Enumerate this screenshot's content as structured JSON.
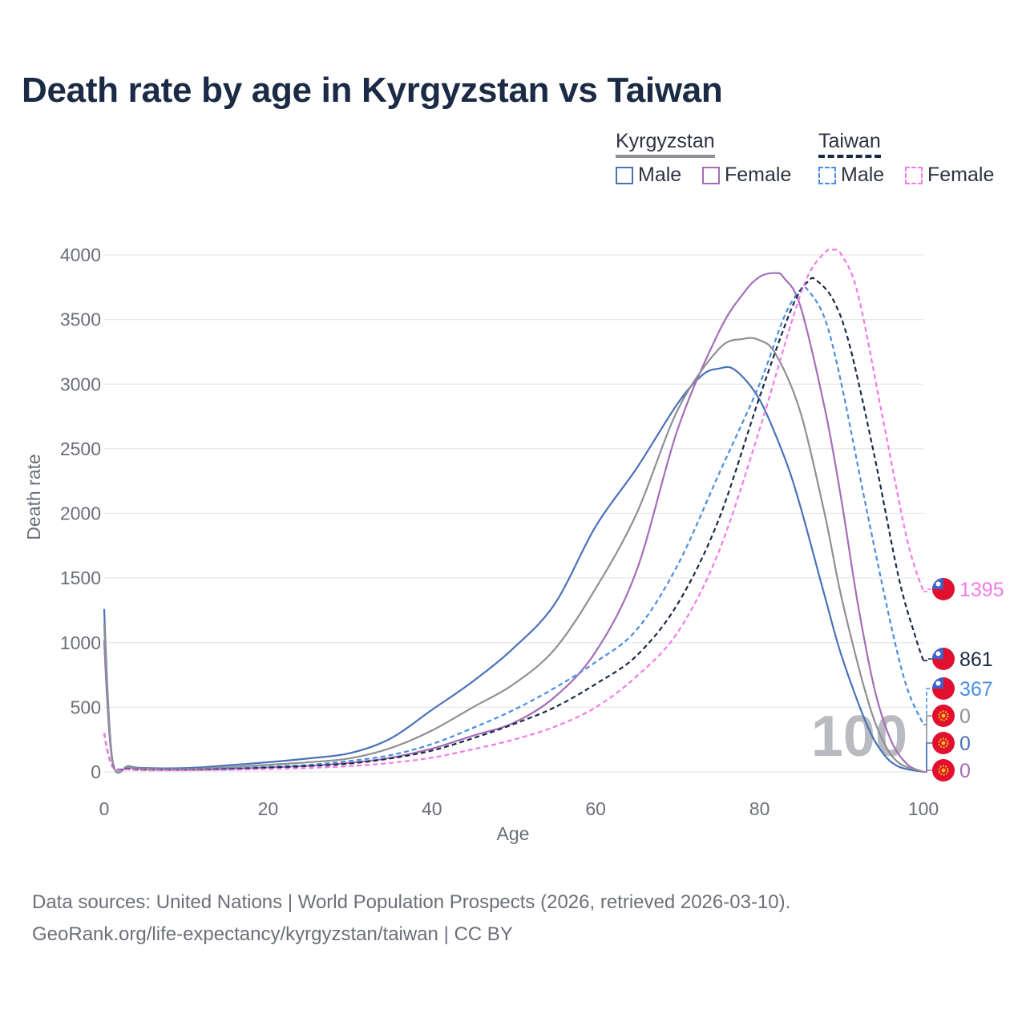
{
  "title": "Death rate by age in Kyrgyzstan vs Taiwan",
  "legend": {
    "groups": [
      {
        "name": "Kyrgyzstan",
        "items": [
          "Male",
          "Female"
        ]
      },
      {
        "name": "Taiwan",
        "items": [
          "Male",
          "Female"
        ]
      }
    ]
  },
  "source": {
    "line1": "Data sources: United Nations | World Population Prospects (2026, retrieved 2026-03-10).",
    "line2": "GeoRank.org/life-expectancy/kyrgyzstan/taiwan | CC BY"
  },
  "chart_data": {
    "type": "line",
    "title": "Death rate by age in Kyrgyzstan vs Taiwan",
    "xlabel": "Age",
    "ylabel": "Death rate",
    "xlim": [
      0,
      100
    ],
    "ylim": [
      0,
      4000
    ],
    "x_ticks": [
      0,
      20,
      40,
      60,
      80,
      100
    ],
    "y_ticks": [
      0,
      500,
      1000,
      1500,
      2000,
      2500,
      3000,
      3500,
      4000
    ],
    "grid": true,
    "current_age_label": "100",
    "series": [
      {
        "name": "Kyrgyzstan Male",
        "country": "Kyrgyzstan",
        "sex": "Male",
        "color": "#4a72b8",
        "dash": false,
        "x": [
          0,
          1,
          3,
          5,
          10,
          15,
          20,
          25,
          30,
          35,
          40,
          45,
          50,
          55,
          60,
          65,
          70,
          73,
          75,
          77,
          80,
          83,
          85,
          88,
          90,
          93,
          95,
          97,
          100
        ],
        "y": [
          1260,
          95,
          45,
          30,
          30,
          50,
          75,
          105,
          145,
          260,
          480,
          700,
          960,
          1300,
          1900,
          2350,
          2850,
          3070,
          3120,
          3110,
          2880,
          2440,
          2050,
          1350,
          900,
          380,
          150,
          40,
          0
        ],
        "end_value": 0
      },
      {
        "name": "Kyrgyzstan Female",
        "country": "Kyrgyzstan",
        "sex": "Female",
        "color": "#a56db7",
        "dash": false,
        "x": [
          0,
          1,
          3,
          5,
          10,
          15,
          20,
          25,
          30,
          35,
          40,
          45,
          50,
          55,
          60,
          65,
          70,
          75,
          78,
          80,
          82,
          83,
          85,
          88,
          90,
          92,
          94,
          96,
          98,
          100
        ],
        "y": [
          1020,
          80,
          35,
          20,
          15,
          22,
          35,
          48,
          70,
          110,
          180,
          280,
          380,
          580,
          930,
          1560,
          2650,
          3400,
          3700,
          3830,
          3860,
          3820,
          3600,
          2800,
          2100,
          1300,
          650,
          250,
          60,
          0
        ],
        "end_value": 0
      },
      {
        "name": "Kyrgyzstan Total",
        "country": "Kyrgyzstan",
        "sex": "Both",
        "color": "#8e9096",
        "dash": false,
        "x": [
          0,
          1,
          3,
          5,
          10,
          15,
          20,
          25,
          30,
          35,
          40,
          45,
          50,
          55,
          60,
          65,
          70,
          75,
          78,
          80,
          82,
          85,
          88,
          90,
          93,
          95,
          97,
          100
        ],
        "y": [
          1150,
          88,
          40,
          25,
          22,
          35,
          55,
          75,
          105,
          185,
          320,
          500,
          680,
          950,
          1420,
          2000,
          2800,
          3270,
          3350,
          3340,
          3230,
          2780,
          1980,
          1350,
          600,
          250,
          70,
          0
        ],
        "end_value": 0
      },
      {
        "name": "Taiwan Male",
        "country": "Taiwan",
        "sex": "Male",
        "color": "#4a8de0",
        "dash": true,
        "x": [
          0,
          1,
          3,
          5,
          10,
          15,
          20,
          25,
          30,
          35,
          40,
          45,
          50,
          55,
          60,
          65,
          70,
          75,
          80,
          83,
          85,
          86,
          88,
          90,
          93,
          96,
          98,
          100
        ],
        "y": [
          300,
          40,
          20,
          15,
          15,
          25,
          40,
          55,
          85,
          130,
          215,
          340,
          480,
          650,
          850,
          1100,
          1600,
          2300,
          3000,
          3520,
          3730,
          3720,
          3500,
          3000,
          2050,
          1150,
          650,
          367
        ],
        "end_value": 367
      },
      {
        "name": "Taiwan Total",
        "country": "Taiwan",
        "sex": "Both",
        "color": "#1b2a45",
        "dash": true,
        "x": [
          0,
          1,
          3,
          5,
          10,
          15,
          20,
          25,
          30,
          35,
          40,
          45,
          50,
          55,
          60,
          65,
          70,
          75,
          80,
          84,
          86,
          87,
          89,
          91,
          94,
          97,
          99,
          100
        ],
        "y": [
          300,
          45,
          22,
          15,
          15,
          22,
          32,
          45,
          65,
          105,
          165,
          260,
          370,
          500,
          680,
          900,
          1300,
          1950,
          2900,
          3600,
          3800,
          3800,
          3650,
          3300,
          2450,
          1500,
          1050,
          861
        ],
        "end_value": 861
      },
      {
        "name": "Taiwan Female",
        "country": "Taiwan",
        "sex": "Female",
        "color": "#f27be8",
        "dash": true,
        "x": [
          0,
          1,
          3,
          5,
          10,
          15,
          20,
          25,
          30,
          35,
          40,
          45,
          50,
          55,
          60,
          65,
          70,
          75,
          80,
          84,
          86,
          88,
          89,
          90,
          92,
          95,
          98,
          100
        ],
        "y": [
          300,
          40,
          18,
          12,
          12,
          15,
          22,
          30,
          45,
          70,
          110,
          175,
          250,
          350,
          500,
          740,
          1080,
          1700,
          2650,
          3500,
          3850,
          4020,
          4040,
          4000,
          3700,
          2750,
          1800,
          1395
        ],
        "end_value": 1395
      }
    ],
    "end_labels": [
      {
        "series": "Taiwan Female",
        "text": "1395",
        "flag": "taiwan",
        "color": "#f27be8"
      },
      {
        "series": "Taiwan Total",
        "text": "861",
        "flag": "taiwan",
        "color": "#1b2a45"
      },
      {
        "series": "Taiwan Male",
        "text": "367",
        "flag": "taiwan",
        "color": "#4a8de0"
      },
      {
        "series": "Kyrgyzstan Total",
        "text": "0",
        "flag": "kyrgyzstan",
        "color": "#8e9096"
      },
      {
        "series": "Kyrgyzstan Male",
        "text": "0",
        "flag": "kyrgyzstan",
        "color": "#4a72b8"
      },
      {
        "series": "Kyrgyzstan Female",
        "text": "0",
        "flag": "kyrgyzstan",
        "color": "#a56db7"
      }
    ]
  }
}
